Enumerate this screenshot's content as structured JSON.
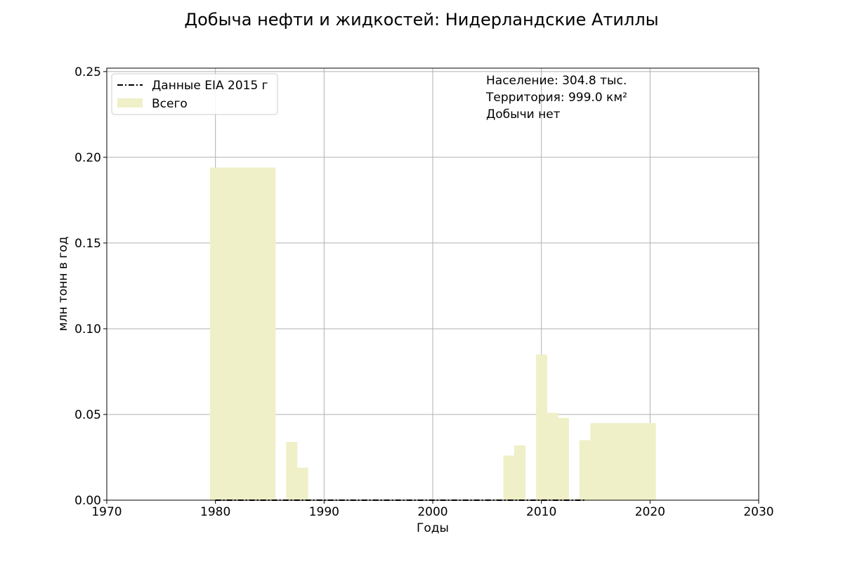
{
  "chart_data": {
    "type": "bar",
    "title": "Добыча нефти и жидкостей: Нидерландские Атиллы",
    "xlabel": "Годы",
    "ylabel": "млн тонн в год",
    "xlim": [
      1970,
      2030
    ],
    "ylim": [
      0,
      0.252
    ],
    "x_ticks": [
      1970,
      1980,
      1990,
      2000,
      2010,
      2020,
      2030
    ],
    "x_tick_labels": [
      "1970",
      "1980",
      "1990",
      "2000",
      "2010",
      "2020",
      "2030"
    ],
    "y_ticks": [
      0,
      0.05,
      0.1,
      0.15,
      0.2,
      0.25
    ],
    "y_tick_labels": [
      "0.00",
      "0.05",
      "0.10",
      "0.15",
      "0.20",
      "0.25"
    ],
    "grid": true,
    "legend_position": "top-left",
    "series": [
      {
        "name": "Всего",
        "kind": "bar",
        "color": "#f0f0c8",
        "x": [
          1980,
          1981,
          1982,
          1983,
          1984,
          1985,
          1987,
          1988,
          2007,
          2008,
          2010,
          2011,
          2012,
          2014,
          2015,
          2016,
          2017,
          2018,
          2019,
          2020
        ],
        "values": [
          0.194,
          0.194,
          0.194,
          0.194,
          0.194,
          0.194,
          0.034,
          0.019,
          0.026,
          0.032,
          0.085,
          0.051,
          0.048,
          0.035,
          0.045,
          0.045,
          0.045,
          0.045,
          0.045,
          0.045
        ]
      },
      {
        "name": "Данные EIA 2015 г",
        "kind": "line",
        "style": "dash-dot",
        "color": "#000000",
        "x": [
          1980,
          2014
        ],
        "values": [
          0,
          0
        ]
      }
    ]
  },
  "annotations": {
    "population": "Население: 304.8 тыс.",
    "territory": "Территория: 999.0 км²",
    "production": "Добычи нет"
  }
}
